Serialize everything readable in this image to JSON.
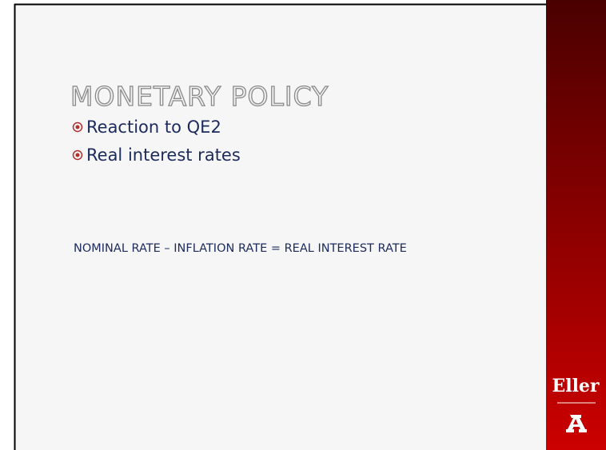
{
  "slide": {
    "title": "MONETARY POLICY",
    "bullets": [
      "Reaction to QE2",
      "Real interest rates"
    ],
    "formula": "NOMINAL RATE – INFLATION RATE = REAL INTEREST RATE",
    "logo_text": "Eller"
  }
}
